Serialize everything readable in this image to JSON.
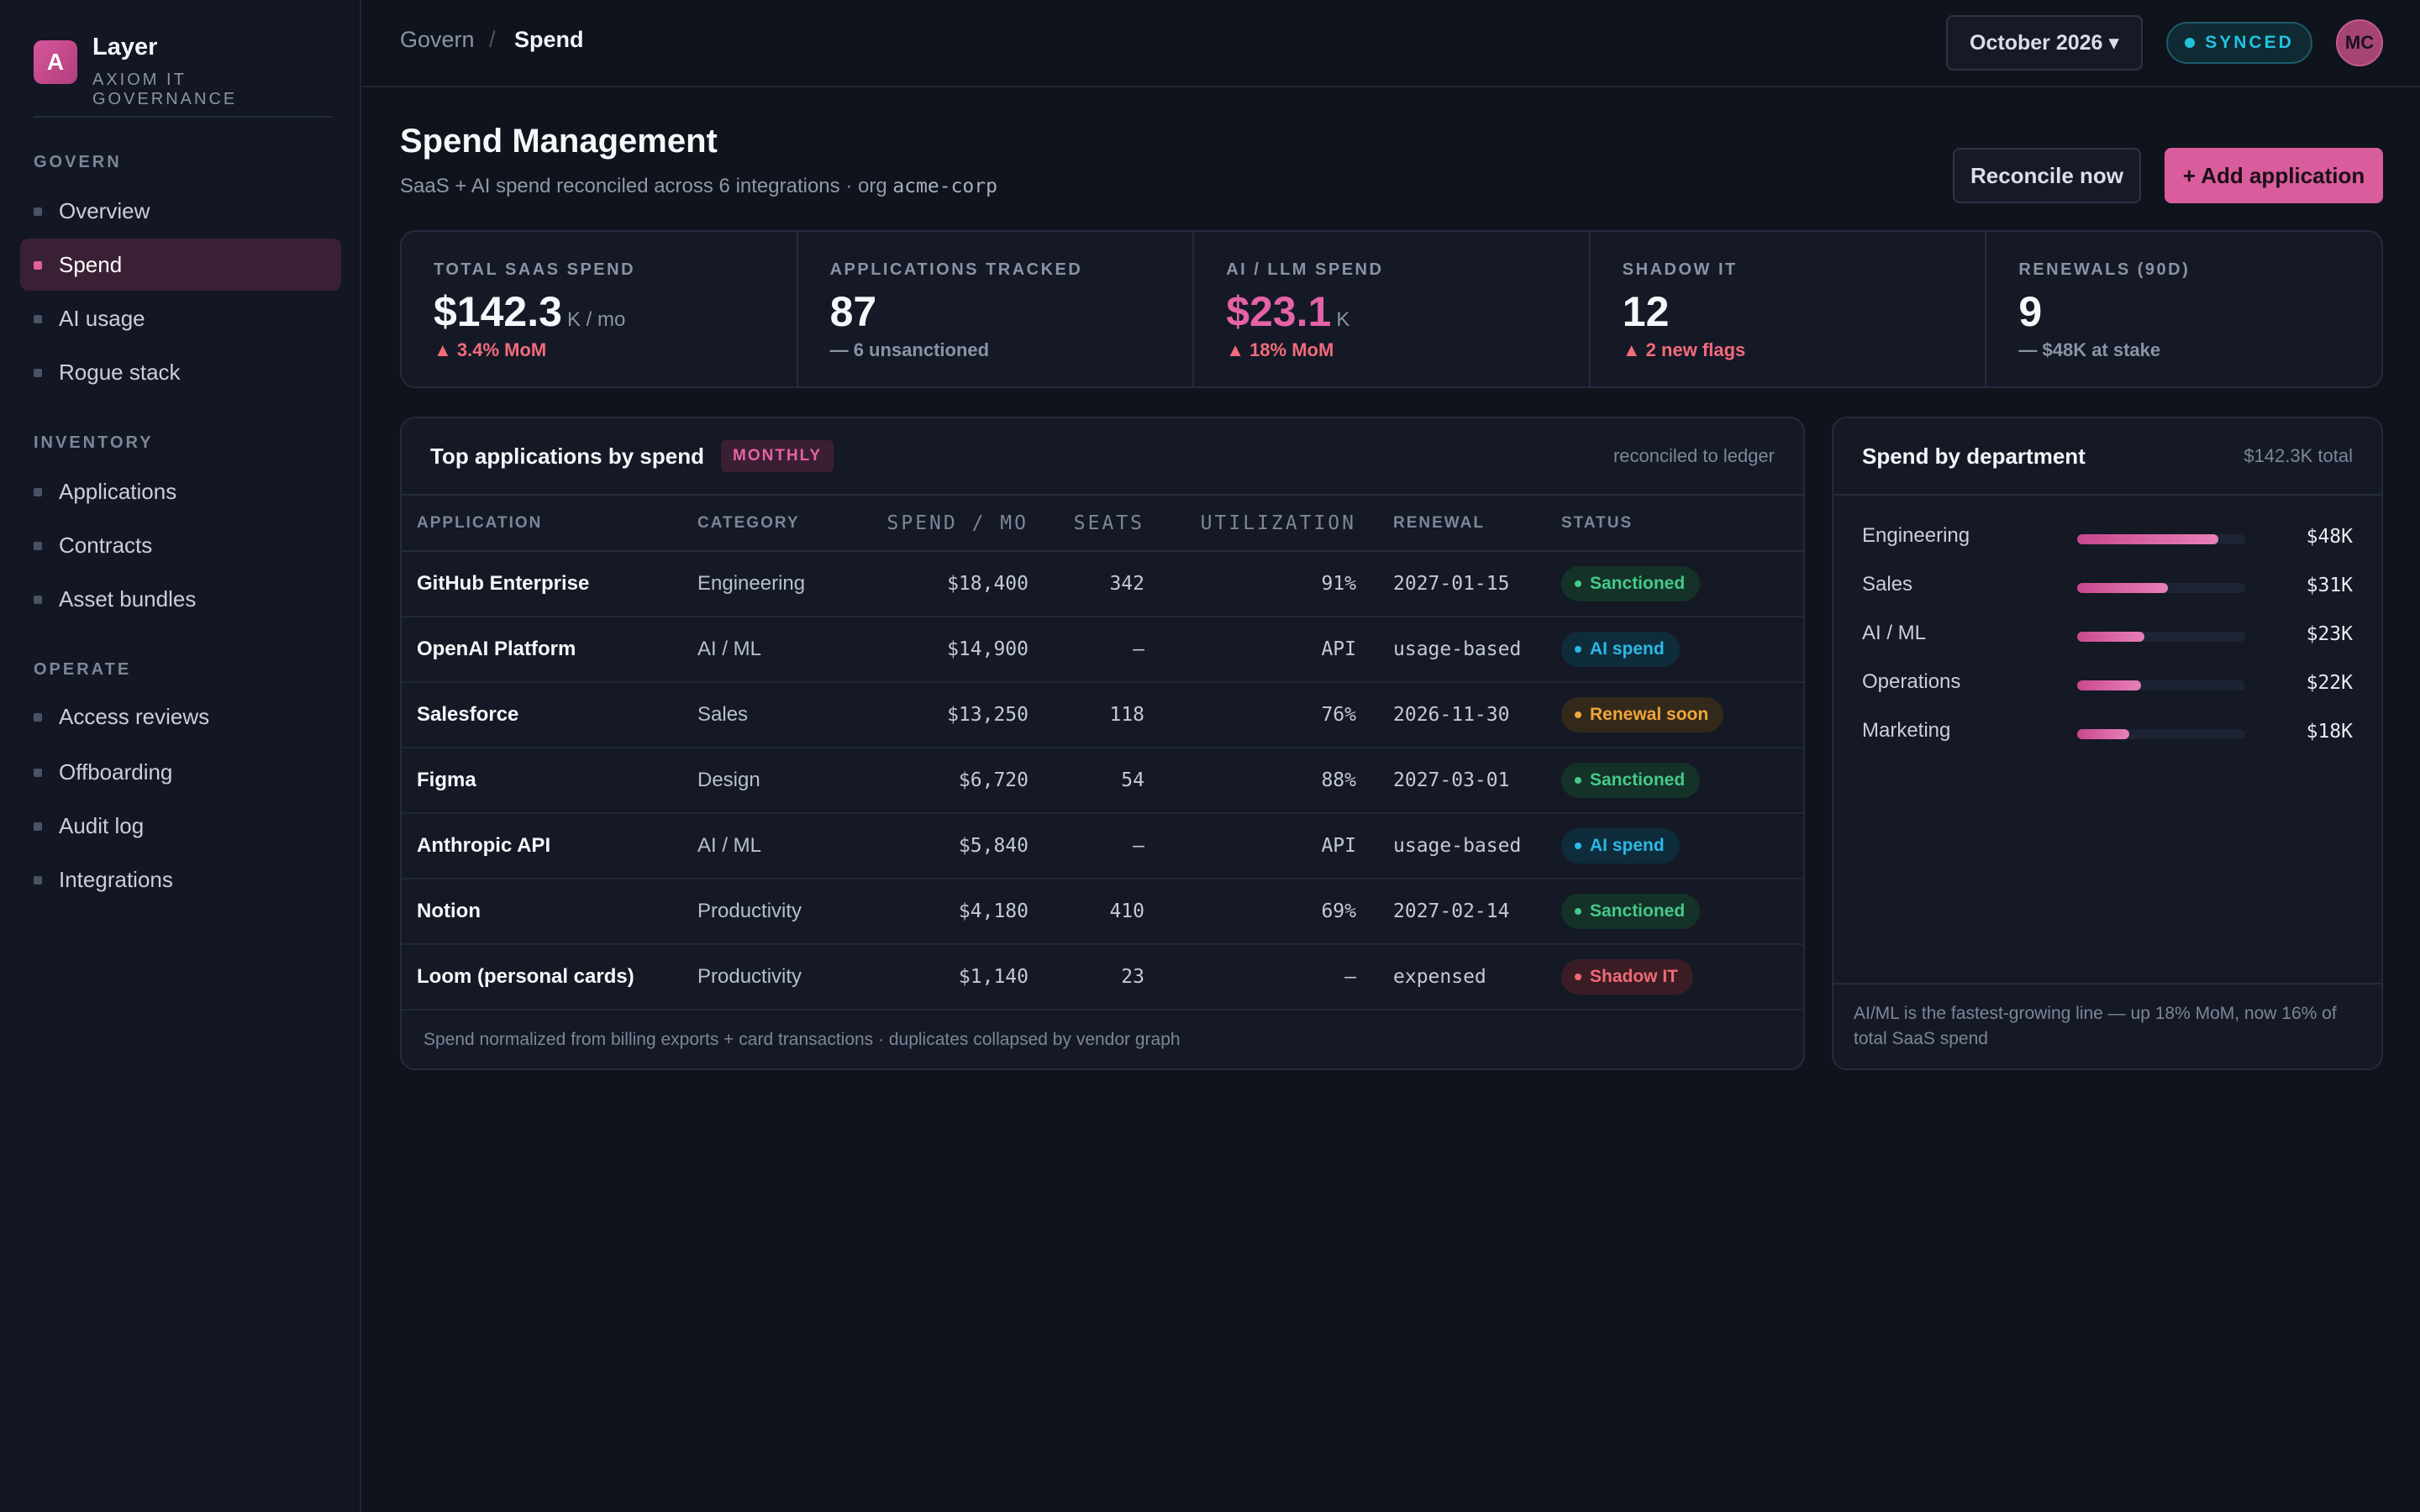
{
  "brand": {
    "logo_letter": "A",
    "name": "Layer",
    "subtitle": "AXIOM IT GOVERNANCE"
  },
  "sidebar": {
    "sections": [
      {
        "title": "GOVERN",
        "items": [
          "Overview",
          "Spend",
          "AI usage",
          "Rogue stack"
        ]
      },
      {
        "title": "INVENTORY",
        "items": [
          "Applications",
          "Contracts",
          "Asset bundles"
        ]
      },
      {
        "title": "OPERATE",
        "items": [
          "Access reviews",
          "Offboarding",
          "Audit log",
          "Integrations"
        ]
      }
    ],
    "active_item": "Spend"
  },
  "topbar": {
    "breadcrumb": [
      "Govern",
      "/",
      "Spend"
    ],
    "period": "October 2026 ▾",
    "sync_status": "SYNCED",
    "avatar_initials": "MC"
  },
  "header": {
    "title": "Spend Management",
    "subtitle": "SaaS + AI spend reconciled across 6 integrations · org",
    "org": "acme-corp",
    "secondary_button": "Reconcile now",
    "primary_button": "+ Add application"
  },
  "kpis": [
    {
      "label": "TOTAL SAAS SPEND",
      "value": "$142.3",
      "unit": "K / mo",
      "delta": "▲ 3.4% MoM",
      "delta_type": "up"
    },
    {
      "label": "APPLICATIONS TRACKED",
      "value": "87",
      "unit": "",
      "delta": "— 6 unsanctioned",
      "delta_type": "neutral"
    },
    {
      "label": "AI / LLM SPEND",
      "value": "$23.1",
      "unit": "K",
      "delta": "▲ 18% MoM",
      "delta_type": "up"
    },
    {
      "label": "SHADOW IT",
      "value": "12",
      "unit": "",
      "delta": "▲ 2 new flags",
      "delta_type": "up"
    },
    {
      "label": "RENEWALS (90D)",
      "value": "9",
      "unit": "",
      "delta": "— $48K at stake",
      "delta_type": "neutral"
    }
  ],
  "apps_table": {
    "title": "Top applications by spend",
    "badge": "MONTHLY",
    "note": "reconciled to ledger",
    "columns": [
      "APPLICATION",
      "CATEGORY",
      "SPEND / MO",
      "SEATS",
      "UTILIZATION",
      "RENEWAL",
      "STATUS"
    ],
    "rows": [
      {
        "app": "GitHub Enterprise",
        "category": "Engineering",
        "spend": "$18,400",
        "seats": "342",
        "util": "91%",
        "renewal": "2027-01-15",
        "status": "Sanctioned",
        "status_type": "sanctioned"
      },
      {
        "app": "OpenAI Platform",
        "category": "AI / ML",
        "spend": "$14,900",
        "seats": "—",
        "util": "API",
        "renewal": "usage-based",
        "status": "AI spend",
        "status_type": "ai"
      },
      {
        "app": "Salesforce",
        "category": "Sales",
        "spend": "$13,250",
        "seats": "118",
        "util": "76%",
        "renewal": "2026-11-30",
        "status": "Renewal soon",
        "status_type": "renewal"
      },
      {
        "app": "Figma",
        "category": "Design",
        "spend": "$6,720",
        "seats": "54",
        "util": "88%",
        "renewal": "2027-03-01",
        "status": "Sanctioned",
        "status_type": "sanctioned"
      },
      {
        "app": "Anthropic API",
        "category": "AI / ML",
        "spend": "$5,840",
        "seats": "—",
        "util": "API",
        "renewal": "usage-based",
        "status": "AI spend",
        "status_type": "ai"
      },
      {
        "app": "Notion",
        "category": "Productivity",
        "spend": "$4,180",
        "seats": "410",
        "util": "69%",
        "renewal": "2027-02-14",
        "status": "Sanctioned",
        "status_type": "sanctioned"
      },
      {
        "app": "Loom (personal cards)",
        "category": "Productivity",
        "spend": "$1,140",
        "seats": "23",
        "util": "—",
        "renewal": "expensed",
        "status": "Shadow IT",
        "status_type": "shadow"
      }
    ],
    "footer": "Spend normalized from billing exports + card transactions · duplicates collapsed by vendor graph"
  },
  "dept_panel": {
    "title": "Spend by department",
    "total": "$142.3K total",
    "rows": [
      {
        "name": "Engineering",
        "value": "$48K",
        "share": 0.84
      },
      {
        "name": "Sales",
        "value": "$31K",
        "share": 0.54
      },
      {
        "name": "AI / ML",
        "value": "$23K",
        "share": 0.4
      },
      {
        "name": "Operations",
        "value": "$22K",
        "share": 0.38
      },
      {
        "name": "Marketing",
        "value": "$18K",
        "share": 0.31
      }
    ],
    "footer": "AI/ML is the fastest-growing line — up 18% MoM, now 16% of total SaaS spend"
  },
  "colors": {
    "accent": "#d95c9c",
    "synced": "#22c2e0",
    "sanctioned": "#45c98a",
    "ai": "#2ab9e6",
    "renewal": "#f0a63a",
    "shadow": "#f06a78"
  }
}
